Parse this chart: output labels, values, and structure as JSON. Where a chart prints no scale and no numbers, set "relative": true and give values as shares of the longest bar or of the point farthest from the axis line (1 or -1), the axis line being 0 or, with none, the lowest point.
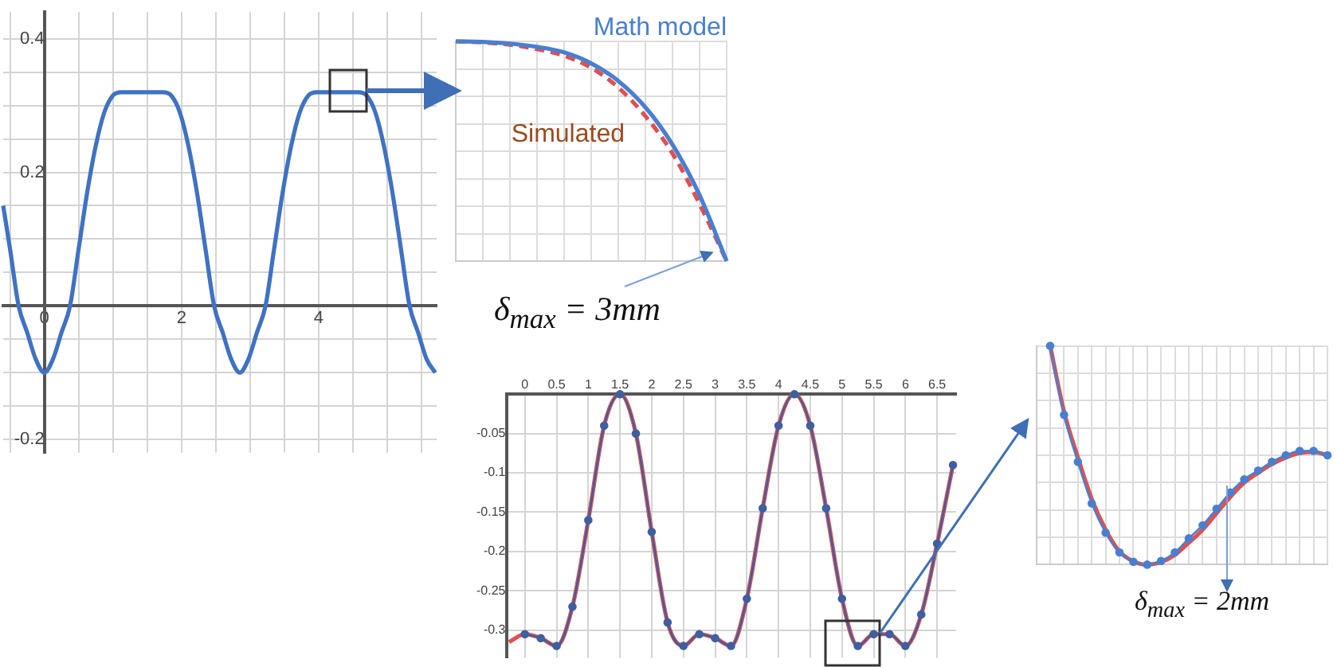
{
  "chart_data": [
    {
      "type": "line",
      "x": [
        -0.6,
        -0.5,
        -0.375,
        -0.25,
        -0.125,
        0,
        0.125,
        0.25,
        0.375,
        0.5,
        0.625,
        0.75,
        0.875,
        1.0,
        1.125,
        1.725,
        1.85,
        1.975,
        2.1,
        2.225,
        2.35,
        2.475,
        2.6,
        2.725,
        2.85,
        2.975,
        3.1,
        3.225,
        3.35,
        3.475,
        3.6,
        3.725,
        3.85,
        3.975,
        4.575,
        4.7,
        4.825,
        4.95,
        5.075,
        5.2,
        5.325,
        5.45,
        5.575,
        5.7
      ],
      "series": [
        {
          "color": "#3f72c4",
          "values": [
            0.15,
            0.085,
            0,
            -0.04,
            -0.08,
            -0.1,
            -0.08,
            -0.04,
            0,
            0.085,
            0.17,
            0.24,
            0.29,
            0.315,
            0.32,
            0.32,
            0.315,
            0.29,
            0.24,
            0.17,
            0.085,
            0,
            -0.04,
            -0.08,
            -0.1,
            -0.08,
            -0.04,
            0,
            0.085,
            0.17,
            0.24,
            0.29,
            0.315,
            0.32,
            0.32,
            0.315,
            0.29,
            0.24,
            0.17,
            0.085,
            0,
            -0.04,
            -0.08,
            -0.1
          ]
        }
      ],
      "xlim": [
        -0.6,
        5.72
      ],
      "ylim": [
        -0.22,
        0.44
      ],
      "xticks": [
        {
          "value": -0.5,
          "label": null
        },
        0,
        {
          "value": 0.5,
          "label": null
        },
        {
          "value": 1,
          "label": null
        },
        {
          "value": 1.5,
          "label": null
        },
        2,
        {
          "value": 2.5,
          "label": null
        },
        {
          "value": 3,
          "label": null
        },
        {
          "value": 3.5,
          "label": null
        },
        4,
        {
          "value": 4.5,
          "label": null
        },
        {
          "value": 5,
          "label": null
        },
        {
          "value": 5.5,
          "label": null
        }
      ],
      "yticks": [
        -0.2,
        {
          "value": -0.15,
          "label": null
        },
        {
          "value": -0.1,
          "label": null
        },
        {
          "value": -0.05,
          "label": null
        },
        {
          "value": 0.05,
          "label": null
        },
        {
          "value": 0.1,
          "label": null
        },
        {
          "value": 0.15,
          "label": null
        },
        0.2,
        {
          "value": 0.25,
          "label": null
        },
        {
          "value": 0.3,
          "label": null
        },
        {
          "value": 0.35,
          "label": null
        },
        0.4
      ],
      "grid": true
    },
    {
      "type": "line",
      "relative": true,
      "categories": [
        null,
        null,
        null,
        null,
        null,
        null,
        null,
        null,
        null,
        null,
        null
      ],
      "series": [
        {
          "name": "Math model",
          "color": "#4a7fd0",
          "values": [
            1,
            0.998,
            0.99,
            0.975,
            0.95,
            0.9,
            0.82,
            0.7,
            0.53,
            0.3,
            0
          ]
        },
        {
          "name": "Simulated",
          "color": "#e05050",
          "line_style": "dashed",
          "values": [
            1,
            0.995,
            0.985,
            0.965,
            0.935,
            0.88,
            0.79,
            0.66,
            0.49,
            0.26,
            0
          ]
        }
      ],
      "grid": true,
      "annotations": [
        "δ$_{max}$ = 3mm"
      ]
    },
    {
      "type": "line",
      "x": [
        -0.25,
        0,
        0.25,
        0.5,
        0.75,
        1,
        1.25,
        1.5,
        1.75,
        2,
        2.25,
        2.5,
        2.75,
        3,
        3.25,
        3.5,
        3.75,
        4,
        4.25,
        4.5,
        4.75,
        5,
        5.25,
        5.5,
        5.75,
        6,
        6.25,
        6.5,
        6.75
      ],
      "series": [
        {
          "color": "#3f5f9f",
          "marker": "circle",
          "values": [
            null,
            -0.305,
            -0.31,
            -0.32,
            -0.27,
            -0.16,
            -0.04,
            0,
            -0.05,
            -0.175,
            -0.29,
            -0.32,
            -0.305,
            -0.31,
            -0.32,
            -0.26,
            -0.145,
            -0.04,
            0,
            -0.04,
            -0.145,
            -0.26,
            -0.32,
            -0.305,
            -0.305,
            -0.32,
            -0.28,
            -0.19,
            -0.09
          ]
        },
        {
          "color": "#e05050",
          "values": [
            -0.315,
            -0.305,
            -0.31,
            -0.32,
            -0.27,
            -0.16,
            -0.04,
            0,
            -0.05,
            -0.175,
            -0.29,
            -0.32,
            -0.305,
            -0.31,
            -0.32,
            -0.26,
            -0.145,
            -0.04,
            0,
            -0.04,
            -0.145,
            -0.26,
            -0.32,
            -0.305,
            -0.305,
            -0.32,
            -0.28,
            -0.19,
            -0.09
          ]
        }
      ],
      "xlim": [
        -0.28,
        6.8
      ],
      "ylim": [
        -0.335,
        0
      ],
      "xticks": [
        0,
        0.5,
        1,
        1.5,
        2,
        2.5,
        3,
        3.5,
        4,
        4.5,
        5,
        5.5,
        6,
        6.5
      ],
      "yticks": [
        -0.3,
        -0.25,
        -0.2,
        -0.15,
        -0.1,
        -0.05
      ],
      "grid": true
    },
    {
      "type": "line",
      "relative": true,
      "categories": [
        null,
        null,
        null,
        null,
        null,
        null,
        null,
        null,
        null,
        null,
        null,
        null,
        null,
        null,
        null,
        null,
        null,
        null,
        null,
        null,
        null,
        null
      ],
      "series": [
        {
          "color": "#4a7fd0",
          "marker": "circle",
          "values": [
            null,
            1,
            0.685,
            0.47,
            0.28,
            0.146,
            0.056,
            0.013,
            0,
            0.017,
            0.056,
            0.12,
            0.18,
            0.255,
            0.33,
            0.39,
            0.43,
            0.47,
            0.5,
            0.52,
            0.52,
            0.5
          ]
        },
        {
          "color": "#e05050",
          "values": [
            null,
            1,
            0.7,
            0.49,
            0.3,
            0.16,
            0.06,
            0.015,
            0,
            0.012,
            0.045,
            0.1,
            0.16,
            0.235,
            0.31,
            0.375,
            0.42,
            0.46,
            0.49,
            0.51,
            0.515,
            0.5
          ]
        }
      ],
      "grid": true,
      "annotations": [
        "δ$_{max}$ = 2mm"
      ]
    }
  ]
}
